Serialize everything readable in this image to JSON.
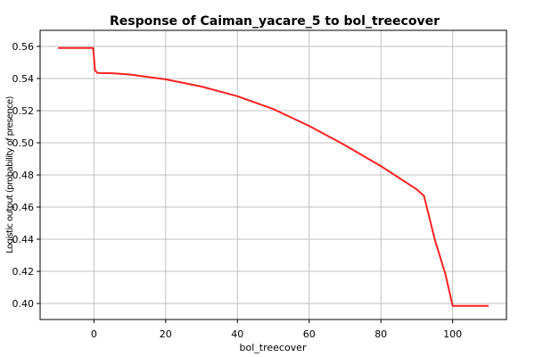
{
  "chart_data": {
    "type": "line",
    "title": "Response of Caiman_yacare_5 to bol_treecover",
    "xlabel": "bol_treecover",
    "ylabel": "Logistic output (probability of presence)",
    "xlim": [
      -15,
      115
    ],
    "ylim": [
      0.39,
      0.57
    ],
    "xticks": [
      0,
      20,
      40,
      60,
      80,
      100
    ],
    "yticks": [
      0.4,
      0.42,
      0.44,
      0.46,
      0.48,
      0.5,
      0.52,
      0.54,
      0.56
    ],
    "grid": true,
    "series": [
      {
        "color": "#ff2020",
        "x": [
          -10,
          -0.2,
          0.3,
          1,
          5,
          10,
          20,
          30,
          40,
          50,
          60,
          70,
          80,
          90,
          92,
          95,
          98,
          100,
          110
        ],
        "y": [
          0.559,
          0.559,
          0.545,
          0.5435,
          0.5433,
          0.5425,
          0.5395,
          0.535,
          0.529,
          0.521,
          0.5105,
          0.4985,
          0.4855,
          0.471,
          0.467,
          0.44,
          0.418,
          0.3985,
          0.3985
        ]
      }
    ]
  }
}
